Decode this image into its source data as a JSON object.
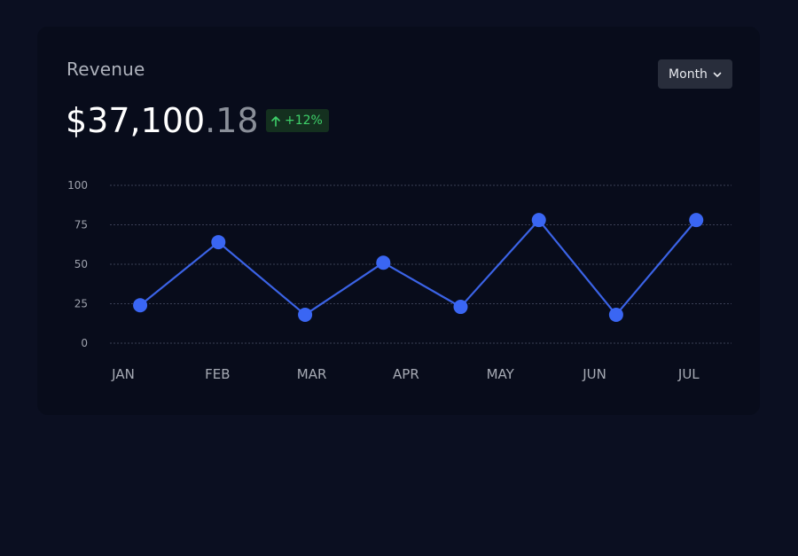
{
  "card": {
    "title": "Revenue",
    "amount_main": "$37,100",
    "amount_cents": ".18",
    "change": "+12%",
    "period_selector": "Month"
  },
  "colors": {
    "background": "#0b0f21",
    "card": "#080c1b",
    "line": "#3b63e6",
    "point": "#3a66f3",
    "grid": "#3a3f55",
    "positive": "#3ed16a"
  },
  "icons": {
    "change": "arrow-up-icon",
    "dropdown": "chevron-down-icon"
  },
  "chart_data": {
    "type": "line",
    "categories": [
      "JAN",
      "FEB",
      "MAR",
      "APR",
      "MAY",
      "JUN",
      "JUL"
    ],
    "x_tick_labels": [
      "JAN",
      "FEB",
      "MAR",
      "APR",
      "MAY",
      "JUN",
      "JUL"
    ],
    "y_ticks": [
      0,
      25,
      50,
      75,
      100
    ],
    "ylim": [
      0,
      100
    ],
    "grid": true,
    "series": [
      {
        "x": [
          0.17,
          1.0,
          1.92,
          2.75,
          3.57,
          4.4,
          5.22,
          6.07
        ],
        "values": [
          24,
          64,
          18,
          51,
          23,
          78,
          18,
          78
        ]
      }
    ]
  }
}
